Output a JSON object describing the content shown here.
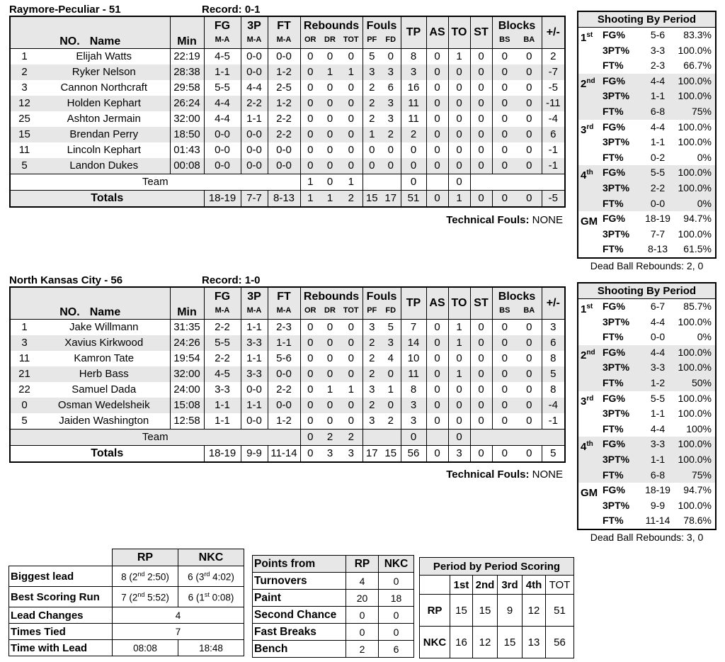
{
  "main_header": {
    "no": "NO.",
    "name": "Name",
    "min": "Min",
    "fg": "FG",
    "p3": "3P",
    "ft": "FT",
    "ma": "M-A",
    "rebounds": "Rebounds",
    "or": "OR",
    "dr": "DR",
    "tot": "TOT",
    "fouls": "Fouls",
    "pf": "PF",
    "fd": "FD",
    "tp": "TP",
    "as": "AS",
    "to": "TO",
    "st": "ST",
    "blocks": "Blocks",
    "bs": "BS",
    "ba": "BA",
    "pm": "+/-"
  },
  "colors": {
    "stripe": "#e7e7e7",
    "border": "#000000",
    "background": "#ffffff"
  },
  "teams": [
    {
      "title": "Raymore-Peculiar - 51",
      "record": "Record: 0-1",
      "players": [
        {
          "no": "1",
          "name": "Elijah Watts",
          "min": "22:19",
          "fg": "4-5",
          "p3": "0-0",
          "ft": "0-0",
          "or": "0",
          "dr": "0",
          "tot": "0",
          "pf": "5",
          "fd": "0",
          "tp": "8",
          "as": "0",
          "to": "1",
          "st": "0",
          "bs": "0",
          "ba": "0",
          "pm": "2"
        },
        {
          "no": "2",
          "name": "Ryker Nelson",
          "min": "28:38",
          "fg": "1-1",
          "p3": "0-0",
          "ft": "1-2",
          "or": "0",
          "dr": "1",
          "tot": "1",
          "pf": "3",
          "fd": "3",
          "tp": "3",
          "as": "0",
          "to": "0",
          "st": "0",
          "bs": "0",
          "ba": "0",
          "pm": "-7"
        },
        {
          "no": "3",
          "name": "Cannon Northcraft",
          "min": "29:58",
          "fg": "5-5",
          "p3": "4-4",
          "ft": "2-5",
          "or": "0",
          "dr": "0",
          "tot": "0",
          "pf": "2",
          "fd": "6",
          "tp": "16",
          "as": "0",
          "to": "0",
          "st": "0",
          "bs": "0",
          "ba": "0",
          "pm": "-5"
        },
        {
          "no": "12",
          "name": "Holden Kephart",
          "min": "26:24",
          "fg": "4-4",
          "p3": "2-2",
          "ft": "1-2",
          "or": "0",
          "dr": "0",
          "tot": "0",
          "pf": "2",
          "fd": "3",
          "tp": "11",
          "as": "0",
          "to": "0",
          "st": "0",
          "bs": "0",
          "ba": "0",
          "pm": "-11"
        },
        {
          "no": "25",
          "name": "Ashton Jermain",
          "min": "32:00",
          "fg": "4-4",
          "p3": "1-1",
          "ft": "2-2",
          "or": "0",
          "dr": "0",
          "tot": "0",
          "pf": "2",
          "fd": "3",
          "tp": "11",
          "as": "0",
          "to": "0",
          "st": "0",
          "bs": "0",
          "ba": "0",
          "pm": "-4"
        },
        {
          "no": "15",
          "name": "Brendan Perry",
          "min": "18:50",
          "fg": "0-0",
          "p3": "0-0",
          "ft": "2-2",
          "or": "0",
          "dr": "0",
          "tot": "0",
          "pf": "1",
          "fd": "2",
          "tp": "2",
          "as": "0",
          "to": "0",
          "st": "0",
          "bs": "0",
          "ba": "0",
          "pm": "6"
        },
        {
          "no": "11",
          "name": "Lincoln Kephart",
          "min": "01:43",
          "fg": "0-0",
          "p3": "0-0",
          "ft": "0-0",
          "or": "0",
          "dr": "0",
          "tot": "0",
          "pf": "0",
          "fd": "0",
          "tp": "0",
          "as": "0",
          "to": "0",
          "st": "0",
          "bs": "0",
          "ba": "0",
          "pm": "-1"
        },
        {
          "no": "5",
          "name": "Landon Dukes",
          "min": "00:08",
          "fg": "0-0",
          "p3": "0-0",
          "ft": "0-0",
          "or": "0",
          "dr": "0",
          "tot": "0",
          "pf": "0",
          "fd": "0",
          "tp": "0",
          "as": "0",
          "to": "0",
          "st": "0",
          "bs": "0",
          "ba": "0",
          "pm": "-1"
        }
      ],
      "team_row": {
        "label": "Team",
        "or": "1",
        "dr": "0",
        "tot": "1",
        "tp": "0",
        "to": "0"
      },
      "totals": {
        "label": "Totals",
        "fg": "18-19",
        "p3": "7-7",
        "ft": "8-13",
        "or": "1",
        "dr": "1",
        "tot": "2",
        "pf": "15",
        "fd": "17",
        "tp": "51",
        "as": "0",
        "to": "1",
        "st": "0",
        "bs": "0",
        "ba": "0",
        "pm": "-5"
      },
      "tech_label": "Technical Fouls:",
      "tech_value": "NONE",
      "shooting": {
        "title": "Shooting By Period",
        "groups": [
          {
            "label": "1",
            "label_sup": "st",
            "rows": [
              {
                "stat": "FG%",
                "att": "5-6",
                "pct": "83.3%"
              },
              {
                "stat": "3PT%",
                "att": "3-3",
                "pct": "100.0%"
              },
              {
                "stat": "FT%",
                "att": "2-3",
                "pct": "66.7%"
              }
            ]
          },
          {
            "label": "2",
            "label_sup": "nd",
            "rows": [
              {
                "stat": "FG%",
                "att": "4-4",
                "pct": "100.0%"
              },
              {
                "stat": "3PT%",
                "att": "1-1",
                "pct": "100.0%"
              },
              {
                "stat": "FT%",
                "att": "6-8",
                "pct": "75%"
              }
            ]
          },
          {
            "label": "3",
            "label_sup": "rd",
            "rows": [
              {
                "stat": "FG%",
                "att": "4-4",
                "pct": "100.0%"
              },
              {
                "stat": "3PT%",
                "att": "1-1",
                "pct": "100.0%"
              },
              {
                "stat": "FT%",
                "att": "0-2",
                "pct": "0%"
              }
            ]
          },
          {
            "label": "4",
            "label_sup": "th",
            "rows": [
              {
                "stat": "FG%",
                "att": "5-5",
                "pct": "100.0%"
              },
              {
                "stat": "3PT%",
                "att": "2-2",
                "pct": "100.0%"
              },
              {
                "stat": "FT%",
                "att": "0-0",
                "pct": "0%"
              }
            ]
          },
          {
            "label": "GM",
            "label_sup": "",
            "rows": [
              {
                "stat": "FG%",
                "att": "18-19",
                "pct": "94.7%"
              },
              {
                "stat": "3PT%",
                "att": "7-7",
                "pct": "100.0%"
              },
              {
                "stat": "FT%",
                "att": "8-13",
                "pct": "61.5%"
              }
            ]
          }
        ],
        "dead_ball": "Dead Ball Rebounds: 2, 0"
      }
    },
    {
      "title": "North Kansas City - 56",
      "record": "Record: 1-0",
      "players": [
        {
          "no": "1",
          "name": "Jake Willmann",
          "min": "31:35",
          "fg": "2-2",
          "p3": "1-1",
          "ft": "2-3",
          "or": "0",
          "dr": "0",
          "tot": "0",
          "pf": "3",
          "fd": "5",
          "tp": "7",
          "as": "0",
          "to": "1",
          "st": "0",
          "bs": "0",
          "ba": "0",
          "pm": "3"
        },
        {
          "no": "3",
          "name": "Xavius Kirkwood",
          "min": "24:26",
          "fg": "5-5",
          "p3": "3-3",
          "ft": "1-1",
          "or": "0",
          "dr": "0",
          "tot": "0",
          "pf": "2",
          "fd": "3",
          "tp": "14",
          "as": "0",
          "to": "1",
          "st": "0",
          "bs": "0",
          "ba": "0",
          "pm": "6"
        },
        {
          "no": "11",
          "name": "Kamron Tate",
          "min": "19:54",
          "fg": "2-2",
          "p3": "1-1",
          "ft": "5-6",
          "or": "0",
          "dr": "0",
          "tot": "0",
          "pf": "2",
          "fd": "4",
          "tp": "10",
          "as": "0",
          "to": "0",
          "st": "0",
          "bs": "0",
          "ba": "0",
          "pm": "8"
        },
        {
          "no": "21",
          "name": "Herb Bass",
          "min": "32:00",
          "fg": "4-5",
          "p3": "3-3",
          "ft": "0-0",
          "or": "0",
          "dr": "0",
          "tot": "0",
          "pf": "2",
          "fd": "0",
          "tp": "11",
          "as": "0",
          "to": "1",
          "st": "0",
          "bs": "0",
          "ba": "0",
          "pm": "5"
        },
        {
          "no": "22",
          "name": "Samuel Dada",
          "min": "24:00",
          "fg": "3-3",
          "p3": "0-0",
          "ft": "2-2",
          "or": "0",
          "dr": "1",
          "tot": "1",
          "pf": "3",
          "fd": "1",
          "tp": "8",
          "as": "0",
          "to": "0",
          "st": "0",
          "bs": "0",
          "ba": "0",
          "pm": "8"
        },
        {
          "no": "0",
          "name": "Osman Wedelsheik",
          "min": "15:08",
          "fg": "1-1",
          "p3": "1-1",
          "ft": "0-0",
          "or": "0",
          "dr": "0",
          "tot": "0",
          "pf": "2",
          "fd": "0",
          "tp": "3",
          "as": "0",
          "to": "0",
          "st": "0",
          "bs": "0",
          "ba": "0",
          "pm": "-4"
        },
        {
          "no": "5",
          "name": "Jaiden Washington",
          "min": "12:58",
          "fg": "1-1",
          "p3": "0-0",
          "ft": "1-2",
          "or": "0",
          "dr": "0",
          "tot": "0",
          "pf": "3",
          "fd": "2",
          "tp": "3",
          "as": "0",
          "to": "0",
          "st": "0",
          "bs": "0",
          "ba": "0",
          "pm": "-1"
        }
      ],
      "team_row": {
        "label": "Team",
        "or": "0",
        "dr": "2",
        "tot": "2",
        "tp": "0",
        "to": "0"
      },
      "totals": {
        "label": "Totals",
        "fg": "18-19",
        "p3": "9-9",
        "ft": "11-14",
        "or": "0",
        "dr": "3",
        "tot": "3",
        "pf": "17",
        "fd": "15",
        "tp": "56",
        "as": "0",
        "to": "3",
        "st": "0",
        "bs": "0",
        "ba": "0",
        "pm": "5"
      },
      "tech_label": "Technical Fouls:",
      "tech_value": "NONE",
      "shooting": {
        "title": "Shooting By Period",
        "groups": [
          {
            "label": "1",
            "label_sup": "st",
            "rows": [
              {
                "stat": "FG%",
                "att": "6-7",
                "pct": "85.7%"
              },
              {
                "stat": "3PT%",
                "att": "4-4",
                "pct": "100.0%"
              },
              {
                "stat": "FT%",
                "att": "0-0",
                "pct": "0%"
              }
            ]
          },
          {
            "label": "2",
            "label_sup": "nd",
            "rows": [
              {
                "stat": "FG%",
                "att": "4-4",
                "pct": "100.0%"
              },
              {
                "stat": "3PT%",
                "att": "3-3",
                "pct": "100.0%"
              },
              {
                "stat": "FT%",
                "att": "1-2",
                "pct": "50%"
              }
            ]
          },
          {
            "label": "3",
            "label_sup": "rd",
            "rows": [
              {
                "stat": "FG%",
                "att": "5-5",
                "pct": "100.0%"
              },
              {
                "stat": "3PT%",
                "att": "1-1",
                "pct": "100.0%"
              },
              {
                "stat": "FT%",
                "att": "4-4",
                "pct": "100%"
              }
            ]
          },
          {
            "label": "4",
            "label_sup": "th",
            "rows": [
              {
                "stat": "FG%",
                "att": "3-3",
                "pct": "100.0%"
              },
              {
                "stat": "3PT%",
                "att": "1-1",
                "pct": "100.0%"
              },
              {
                "stat": "FT%",
                "att": "6-8",
                "pct": "75%"
              }
            ]
          },
          {
            "label": "GM",
            "label_sup": "",
            "rows": [
              {
                "stat": "FG%",
                "att": "18-19",
                "pct": "94.7%"
              },
              {
                "stat": "3PT%",
                "att": "9-9",
                "pct": "100.0%"
              },
              {
                "stat": "FT%",
                "att": "11-14",
                "pct": "78.6%"
              }
            ]
          }
        ],
        "dead_ball": "Dead Ball Rebounds: 3, 0"
      }
    }
  ],
  "game_flow": {
    "col_rp": "RP",
    "col_nkc": "NKC",
    "biggest_lead": {
      "label": "Biggest lead",
      "rp": {
        "pre": "8 (2",
        "sup": "nd",
        "post": " 2:50)"
      },
      "nkc": {
        "pre": "6 (3",
        "sup": "rd",
        "post": " 4:02)"
      }
    },
    "best_run": {
      "label": "Best Scoring Run",
      "rp": {
        "pre": "7 (2",
        "sup": "nd",
        "post": " 5:52)"
      },
      "nkc": {
        "pre": "6 (1",
        "sup": "st",
        "post": " 0:08)"
      }
    },
    "lead_changes": {
      "label": "Lead Changes",
      "value": "4"
    },
    "times_tied": {
      "label": "Times Tied",
      "value": "7"
    },
    "time_with_lead": {
      "label": "Time with Lead",
      "rp": "08:08",
      "nkc": "18:48"
    }
  },
  "points_from": {
    "title": "Points from",
    "col_rp": "RP",
    "col_nkc": "NKC",
    "rows": [
      {
        "label": "Turnovers",
        "rp": "4",
        "nkc": "0"
      },
      {
        "label": "Paint",
        "rp": "20",
        "nkc": "18"
      },
      {
        "label": "Second Chance",
        "rp": "0",
        "nkc": "0"
      },
      {
        "label": "Fast Breaks",
        "rp": "0",
        "nkc": "0"
      },
      {
        "label": "Bench",
        "rp": "2",
        "nkc": "6"
      }
    ]
  },
  "period_scoring": {
    "title": "Period by Period Scoring",
    "cols": [
      "1st",
      "2nd",
      "3rd",
      "4th",
      "TOT"
    ],
    "rows": [
      {
        "team": "RP",
        "vals": [
          "15",
          "15",
          "9",
          "12",
          "51"
        ]
      },
      {
        "team": "NKC",
        "vals": [
          "16",
          "12",
          "15",
          "13",
          "56"
        ]
      }
    ]
  }
}
